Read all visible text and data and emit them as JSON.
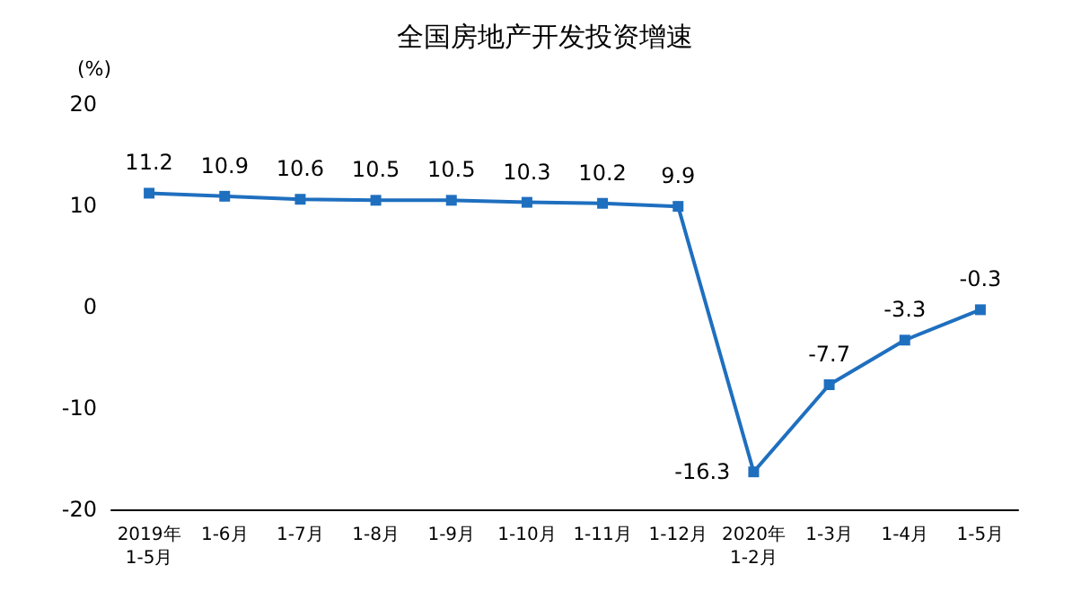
{
  "chart_data": {
    "type": "line",
    "title": "全国房地产开发投资增速",
    "ylabel": "(%)",
    "categories": [
      "2019年\n1-5月",
      "1-6月",
      "1-7月",
      "1-8月",
      "1-9月",
      "1-10月",
      "1-11月",
      "1-12月",
      "2020年\n1-2月",
      "1-3月",
      "1-4月",
      "1-5月"
    ],
    "series": [
      {
        "color": "#1f6fbf",
        "values": [
          11.2,
          10.9,
          10.6,
          10.5,
          10.5,
          10.3,
          10.2,
          9.9,
          -16.3,
          -7.7,
          -3.3,
          -0.3
        ]
      }
    ],
    "ylim": [
      -20,
      20
    ],
    "yticks": [
      -20,
      -10,
      0,
      10,
      20
    ],
    "grid": false,
    "marker": "square",
    "line_style": "solid",
    "data_labels": true
  }
}
